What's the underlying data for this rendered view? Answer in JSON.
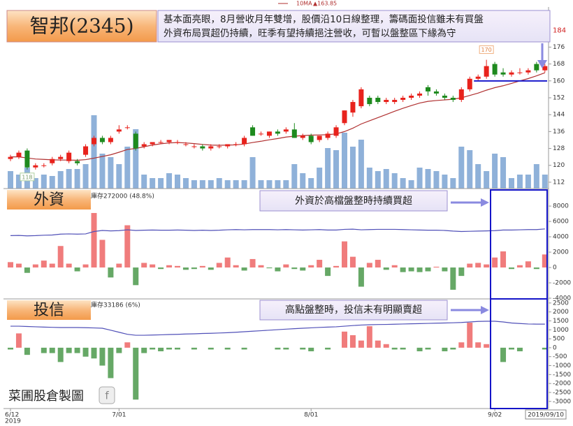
{
  "header": {
    "title": "智邦(2345)",
    "note": [
      "基本面亮眼，8月營收月年雙增，股價沿10日線整理，籌碼面投信雖未有買盤",
      "外資布局買超仍持續，旺季有望持續挹注營收，可暫以盤整區下緣為守"
    ]
  },
  "chart_data": [
    {
      "type": "candlestick",
      "ohlc": [
        [
          123,
          125,
          122,
          124
        ],
        [
          124,
          127,
          123,
          126
        ],
        [
          127,
          128,
          118,
          119
        ],
        [
          119,
          121,
          118,
          120
        ],
        [
          120,
          121,
          119,
          120
        ],
        [
          121,
          124,
          120,
          123
        ],
        [
          123,
          125,
          122,
          124
        ],
        [
          122,
          127,
          121,
          126
        ],
        [
          122,
          123,
          120,
          121
        ],
        [
          125,
          130,
          124,
          129
        ],
        [
          130,
          134,
          129,
          133
        ],
        [
          133,
          134,
          130,
          131
        ],
        [
          131,
          134,
          130,
          133
        ],
        [
          136,
          139,
          135,
          137
        ],
        [
          138,
          139,
          137,
          138
        ],
        [
          135,
          136,
          127,
          128
        ],
        [
          129,
          131,
          128,
          130
        ],
        [
          130,
          131,
          129,
          131
        ],
        [
          131,
          132,
          130,
          131
        ],
        [
          131,
          132,
          130,
          132
        ],
        [
          131,
          132,
          130,
          131
        ],
        [
          130,
          131,
          129,
          130
        ],
        [
          129,
          130,
          128,
          129
        ],
        [
          129,
          130,
          127,
          128
        ],
        [
          128,
          130,
          127,
          129
        ],
        [
          129,
          130,
          128,
          129
        ],
        [
          129,
          130,
          128,
          130
        ],
        [
          130,
          131,
          129,
          130
        ],
        [
          130,
          134,
          129,
          133
        ],
        [
          138,
          139,
          134,
          134
        ],
        [
          135,
          136,
          134,
          135
        ],
        [
          134,
          136,
          133,
          136
        ],
        [
          136,
          137,
          134,
          135
        ],
        [
          136,
          138,
          135,
          137
        ],
        [
          137,
          140,
          133,
          133
        ],
        [
          133,
          135,
          132,
          134
        ],
        [
          134,
          135,
          130,
          131
        ],
        [
          132,
          134,
          131,
          134
        ],
        [
          133,
          136,
          132,
          135
        ],
        [
          134,
          139,
          133,
          138
        ],
        [
          140,
          146,
          139,
          146
        ],
        [
          145,
          151,
          143,
          150
        ],
        [
          148,
          157,
          147,
          156
        ],
        [
          152,
          153,
          148,
          149
        ],
        [
          152,
          153,
          149,
          150
        ],
        [
          150,
          152,
          149,
          151
        ],
        [
          150,
          152,
          149,
          151
        ],
        [
          151,
          153,
          150,
          152
        ],
        [
          152,
          154,
          151,
          153
        ],
        [
          153,
          155,
          152,
          154
        ],
        [
          157,
          158,
          153,
          155
        ],
        [
          155,
          156,
          153,
          154
        ],
        [
          153,
          154,
          151,
          152
        ],
        [
          152,
          153,
          150,
          151
        ],
        [
          151,
          157,
          150,
          156
        ],
        [
          156,
          162,
          155,
          161
        ],
        [
          161,
          163,
          160,
          162
        ],
        [
          162,
          170,
          161,
          167
        ],
        [
          168,
          169,
          162,
          163
        ],
        [
          164,
          166,
          162,
          163
        ],
        [
          163,
          165,
          162,
          164
        ],
        [
          164,
          166,
          163,
          164
        ],
        [
          164,
          166,
          163,
          165
        ],
        [
          168,
          169,
          164,
          165
        ],
        [
          165,
          168,
          164,
          167
        ]
      ],
      "up_color": "#e8221c",
      "down_color": "#1e8a1e",
      "ma": {
        "name": "10MA",
        "label": "▲163.85",
        "color": "#b03030",
        "values": [
          124,
          124,
          123.5,
          123,
          122.8,
          122.6,
          122.5,
          122.5,
          122.4,
          122.7,
          123.4,
          124.2,
          125,
          126.2,
          127.5,
          128,
          128.8,
          129.6,
          130.2,
          130.6,
          130.8,
          130.6,
          130.3,
          129.9,
          129.6,
          129.5,
          129.6,
          129.7,
          130.1,
          130.8,
          131.4,
          132.1,
          132.7,
          133.4,
          133.8,
          134.1,
          134.3,
          134.4,
          134.5,
          134.9,
          136,
          137.6,
          139.6,
          141.1,
          142.6,
          144.1,
          145.6,
          147,
          148.3,
          149.5,
          150.3,
          150.7,
          151,
          151.3,
          152,
          153.1,
          154.2,
          155.6,
          156.8,
          157.7,
          158.8,
          160,
          161.1,
          162.4,
          163.85
        ]
      },
      "volume": {
        "color": "#8fb1d9",
        "lim": [
          0,
          30000
        ],
        "values": [
          5000,
          4000,
          6000,
          3000,
          4000,
          3600,
          5000,
          5600,
          5600,
          7000,
          21000,
          10000,
          9000,
          7000,
          12000,
          17000,
          4000,
          3000,
          3000,
          4400,
          4000,
          3000,
          2400,
          2400,
          2400,
          3000,
          2400,
          2400,
          2400,
          9000,
          2400,
          2400,
          2400,
          2400,
          7000,
          4400,
          3000,
          6000,
          11600,
          11000,
          16000,
          12000,
          14000,
          6000,
          5000,
          5600,
          4400,
          3000,
          2400,
          6000,
          5600,
          5000,
          4000,
          3000,
          12000,
          11000,
          7000,
          5000,
          10000,
          9000,
          3000,
          4000,
          4000,
          7000,
          4000
        ]
      },
      "ylim": [
        109,
        195
      ],
      "yticks": [
        112,
        120,
        128,
        136,
        144,
        152,
        160,
        168,
        176
      ],
      "reference_price": 184,
      "reference_color": "#d02020",
      "support_level": 160,
      "support_color": "#1a1acc"
    },
    {
      "type": "bar",
      "title": "外資",
      "holding_label": "庫存272000 (48.8%)",
      "callout": "外資於高檔盤整時持續買超",
      "values": [
        700,
        500,
        -700,
        400,
        900,
        500,
        2800,
        500,
        -500,
        400,
        7100,
        3600,
        -1300,
        500,
        5500,
        -2300,
        600,
        400,
        -200,
        300,
        200,
        -300,
        -200,
        200,
        -300,
        600,
        1300,
        300,
        -400,
        1100,
        300,
        -100,
        -500,
        400,
        -200,
        -400,
        300,
        1000,
        -1100,
        200,
        3400,
        1400,
        -2500,
        600,
        1000,
        -300,
        300,
        -600,
        -500,
        -600,
        -500,
        100,
        -500,
        -2900,
        -1100,
        500,
        600,
        400,
        1300,
        2100,
        -200,
        300,
        800,
        -200,
        1700
      ],
      "up_color": "#f07c7c",
      "down_color": "#66a866",
      "line": {
        "color": "#5050b8",
        "values": [
          268900,
          269000,
          268800,
          268900,
          269100,
          269200,
          269600,
          269700,
          269600,
          269700,
          270800,
          271300,
          271100,
          271200,
          271600,
          271300,
          271400,
          271500,
          271400,
          271400,
          271500,
          271400,
          271300,
          271400,
          271300,
          271400,
          271600,
          271700,
          271600,
          271700,
          271700,
          271700,
          271600,
          271700,
          271600,
          271500,
          271600,
          271700,
          271500,
          271500,
          271800,
          271900,
          271600,
          271700,
          271800,
          271800,
          271800,
          271700,
          271600,
          271500,
          271400,
          271400,
          271300,
          271000,
          270800,
          270900,
          271000,
          271100,
          271200,
          271500,
          271500,
          271600,
          271700,
          271700,
          272000
        ]
      },
      "y2lim": [
        240000,
        290000
      ],
      "ylim": [
        -4000,
        10100
      ],
      "yticks": [
        8000,
        6000,
        4000,
        2000,
        0,
        -2000,
        -4000
      ]
    },
    {
      "type": "bar",
      "title": "投信",
      "holding_label": "庫存33186 (6%)",
      "callout": "高點盤整時，投信未有明顯賣超",
      "values": [
        -100,
        800,
        -400,
        0,
        -300,
        -300,
        -800,
        -300,
        -300,
        -500,
        -600,
        -1000,
        -1700,
        -300,
        300,
        -2900,
        -300,
        -100,
        -200,
        -100,
        -100,
        0,
        -100,
        0,
        -100,
        0,
        -100,
        0,
        -100,
        0,
        0,
        0,
        -100,
        -100,
        0,
        -100,
        -200,
        0,
        -100,
        0,
        900,
        700,
        400,
        1200,
        400,
        200,
        -100,
        -100,
        0,
        -200,
        -100,
        0,
        -200,
        -100,
        300,
        1400,
        300,
        200,
        0,
        -800,
        -100,
        -200,
        0,
        0,
        -100
      ],
      "up_color": "#f07c7c",
      "down_color": "#66a866",
      "line": {
        "color": "#5050b8",
        "values": [
          32990,
          32990,
          32960,
          32930,
          32900,
          32880,
          32860,
          32860,
          32860,
          32840,
          32820,
          32790,
          32600,
          32400,
          32200,
          32110,
          32110,
          32130,
          32150,
          32180,
          32200,
          32230,
          32250,
          32280,
          32300,
          32330,
          32360,
          32400,
          32450,
          32500,
          32550,
          32600,
          32650,
          32700,
          32750,
          32790,
          32830,
          32870,
          32900,
          32930,
          32990,
          33050,
          33100,
          33130,
          33150,
          33160,
          33180,
          33200,
          33220,
          33240,
          33260,
          33280,
          33300,
          33320,
          33350,
          33400,
          33450,
          33470,
          33470,
          33400,
          33300,
          33250,
          33200,
          33190,
          33186
        ]
      },
      "y2lim": [
        25000,
        35500
      ],
      "ylim": [
        -3400,
        2650
      ],
      "yticks": [
        2500,
        2000,
        1500,
        1000,
        500,
        0,
        -500,
        -1000,
        -1500,
        -2000,
        -2500,
        -3000
      ],
      "categories": [
        "6/12",
        null,
        null,
        null,
        null,
        null,
        null,
        null,
        null,
        null,
        null,
        null,
        null,
        "7/01",
        null,
        null,
        null,
        null,
        null,
        null,
        null,
        null,
        null,
        null,
        null,
        null,
        null,
        null,
        null,
        null,
        null,
        null,
        null,
        null,
        null,
        null,
        "8/01",
        null,
        null,
        null,
        null,
        null,
        null,
        null,
        null,
        null,
        null,
        null,
        null,
        null,
        null,
        null,
        null,
        null,
        null,
        null,
        null,
        null,
        "9/02",
        null,
        null,
        null,
        null,
        null,
        null
      ],
      "year_label": "2019",
      "last_date": "2019/09/10"
    }
  ],
  "footer": {
    "credit": "菜圃股倉製圖"
  }
}
